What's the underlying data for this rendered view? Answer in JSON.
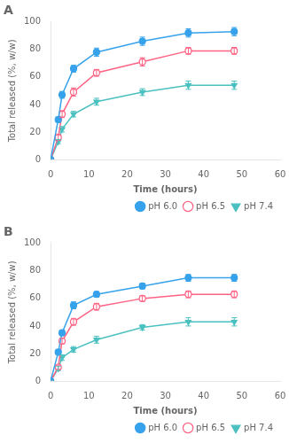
{
  "chart_data": [
    {
      "type": "line",
      "title": "A",
      "xlabel": "Time (hours)",
      "ylabel": "Total released (%, w/w)",
      "x": [
        0,
        2,
        3,
        6,
        12,
        24,
        36,
        48
      ],
      "xlim": [
        0,
        60
      ],
      "xticks": [
        0,
        10,
        20,
        30,
        40,
        50,
        60
      ],
      "ylim": [
        0,
        100
      ],
      "yticks": [
        0,
        20,
        40,
        60,
        80,
        100
      ],
      "grid": false,
      "legend": "lower right",
      "series": [
        {
          "name": "pH 6.0",
          "marker": "circle",
          "values": [
            0,
            29,
            47,
            66,
            78,
            86,
            92,
            93
          ],
          "errors": [
            0,
            2,
            2.5,
            2.5,
            3,
            3,
            3,
            3
          ]
        },
        {
          "name": "pH 6.5",
          "marker": "open_circle",
          "values": [
            0,
            16,
            33,
            49,
            63,
            71,
            79,
            79
          ],
          "errors": [
            0,
            2,
            2.5,
            3,
            2.5,
            3,
            2.5,
            2.5
          ]
        },
        {
          "name": "pH 7.4",
          "marker": "triangle_down",
          "values": [
            0,
            13,
            22,
            33,
            42,
            49,
            54,
            54
          ],
          "errors": [
            0,
            1.5,
            2,
            2,
            2.5,
            2.5,
            3,
            3
          ]
        }
      ]
    },
    {
      "type": "line",
      "title": "B",
      "xlabel": "Time (hours)",
      "ylabel": "Total released (%, w/w)",
      "x": [
        0,
        2,
        3,
        6,
        12,
        24,
        36,
        48
      ],
      "xlim": [
        0,
        60
      ],
      "xticks": [
        0,
        10,
        20,
        30,
        40,
        50,
        60
      ],
      "ylim": [
        0,
        100
      ],
      "yticks": [
        0,
        20,
        40,
        60,
        80,
        100
      ],
      "grid": false,
      "legend": "lower right",
      "series": [
        {
          "name": "pH 6.0",
          "marker": "circle",
          "values": [
            0,
            21,
            35,
            55,
            63,
            69,
            75,
            75
          ],
          "errors": [
            0,
            1.5,
            2,
            2.5,
            2,
            2,
            2.5,
            2.5
          ]
        },
        {
          "name": "pH 6.5",
          "marker": "open_circle",
          "values": [
            0,
            10,
            29,
            43,
            54,
            60,
            63,
            63
          ],
          "errors": [
            0,
            1.5,
            2,
            2.5,
            2.5,
            2,
            2.5,
            2.5
          ]
        },
        {
          "name": "pH 7.4",
          "marker": "triangle_down",
          "values": [
            0,
            9,
            17,
            23,
            30,
            39,
            43,
            43
          ],
          "errors": [
            0,
            1.5,
            2,
            2,
            2.5,
            2,
            3,
            3
          ]
        }
      ]
    }
  ]
}
